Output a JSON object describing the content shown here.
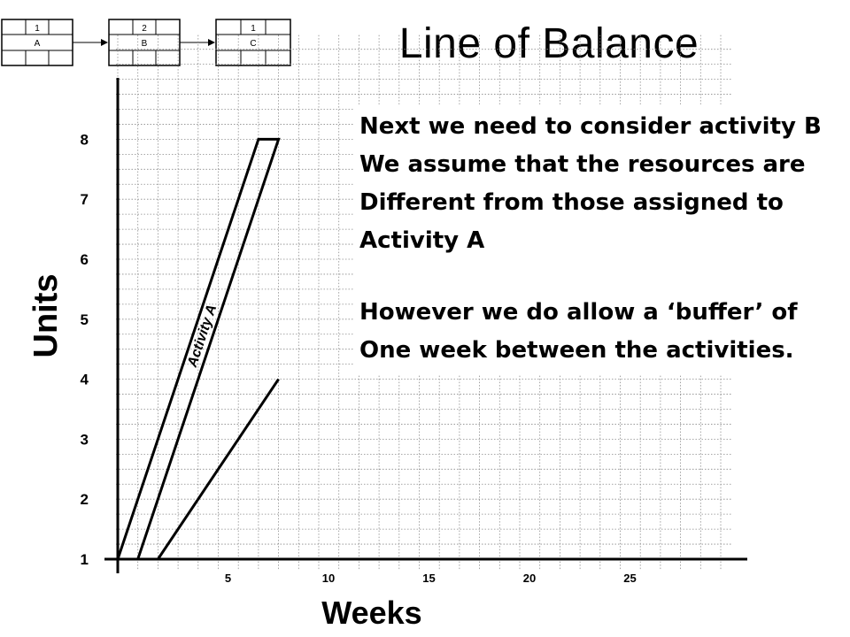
{
  "slide": {
    "title": "Line of Balance",
    "notes": [
      "Next we need to consider activity B",
      "We assume that the resources are",
      "Different from those assigned to",
      "Activity A",
      "",
      "However we do allow a ‘buffer’ of",
      "One week between the activities."
    ]
  },
  "network": {
    "nodes": [
      {
        "duration": "1",
        "label": "A"
      },
      {
        "duration": "2",
        "label": "B"
      },
      {
        "duration": "1",
        "label": "C"
      }
    ]
  },
  "chart_data": {
    "type": "line",
    "xlabel": "Weeks",
    "ylabel": "Units",
    "xlim": [
      0,
      31
    ],
    "ylim": [
      1,
      9
    ],
    "x_ticks": [
      5,
      10,
      15,
      20,
      25
    ],
    "y_ticks": [
      1,
      2,
      3,
      4,
      5,
      6,
      7,
      8
    ],
    "grid": true,
    "series": [
      {
        "name": "Activity A",
        "x": [
          0,
          7,
          8,
          1,
          0
        ],
        "y": [
          1,
          8,
          8,
          1,
          1
        ]
      },
      {
        "name": "",
        "x": [
          2,
          8
        ],
        "y": [
          1,
          4
        ]
      }
    ],
    "annotations": [
      {
        "text": "Activity A",
        "x": 4.4,
        "y": 4.7
      }
    ]
  }
}
